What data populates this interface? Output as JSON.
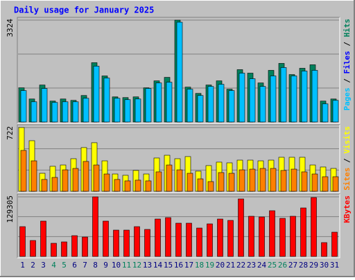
{
  "chart_data": [
    {
      "type": "bar",
      "title": "Daily usage for January 2025",
      "ylim": [
        0,
        3324
      ],
      "yticks": [
        3324
      ],
      "legend_separator": " / ",
      "other_legend_entries": [
        {
          "name": "Files",
          "color": "#0000ff"
        }
      ],
      "series": [
        {
          "name": "Hits",
          "color": "#00805c",
          "values": [
            1116,
            751,
            1207,
            683,
            751,
            706,
            865,
            1935,
            1503,
            820,
            797,
            820,
            1116,
            1343,
            1457,
            3324,
            1138,
            933,
            1207,
            1343,
            1070,
            1708,
            1594,
            1275,
            1685,
            1912,
            1548,
            1753,
            1867,
            683,
            751
          ]
        },
        {
          "name": "Pages",
          "color": "#00c0ff",
          "values": [
            1025,
            660,
            1093,
            638,
            660,
            660,
            774,
            1822,
            1434,
            774,
            729,
            751,
            1093,
            1275,
            1298,
            3256,
            1070,
            865,
            1161,
            1230,
            1025,
            1594,
            1412,
            1161,
            1503,
            1776,
            1503,
            1662,
            1685,
            592,
            706
          ]
        }
      ]
    },
    {
      "type": "bar",
      "ylim": [
        0,
        722
      ],
      "yticks": [
        722
      ],
      "legend_separator": " / ",
      "series": [
        {
          "name": "Visits",
          "color": "#ffff00",
          "values": [
            722,
            573,
            204,
            283,
            298,
            369,
            495,
            550,
            345,
            196,
            181,
            236,
            196,
            377,
            408,
            369,
            393,
            228,
            291,
            330,
            322,
            353,
            353,
            345,
            353,
            385,
            385,
            385,
            298,
            275,
            259
          ]
        },
        {
          "name": "Sites",
          "color": "#ff8000",
          "values": [
            463,
            345,
            134,
            157,
            243,
            259,
            338,
            298,
            196,
            134,
            118,
            126,
            118,
            220,
            298,
            243,
            204,
            141,
            110,
            212,
            204,
            243,
            251,
            259,
            259,
            236,
            251,
            220,
            196,
            165,
            165
          ]
        }
      ]
    },
    {
      "type": "bar",
      "ylim": [
        0,
        129305
      ],
      "yticks": [
        129305
      ],
      "categories": [
        "1",
        "2",
        "3",
        "4",
        "5",
        "6",
        "7",
        "8",
        "9",
        "10",
        "11",
        "12",
        "13",
        "14",
        "15",
        "16",
        "17",
        "18",
        "19",
        "20",
        "21",
        "22",
        "23",
        "24",
        "25",
        "26",
        "27",
        "28",
        "29",
        "30",
        "31"
      ],
      "category_colors": [
        "#000080",
        "#000080",
        "#000080",
        "#00805c",
        "#00805c",
        "#000080",
        "#000080",
        "#000080",
        "#000080",
        "#000080",
        "#00805c",
        "#00805c",
        "#000080",
        "#000080",
        "#000080",
        "#000080",
        "#000080",
        "#00805c",
        "#00805c",
        "#000080",
        "#000080",
        "#000080",
        "#000080",
        "#000080",
        "#00805c",
        "#00805c",
        "#000080",
        "#000080",
        "#000080",
        "#000080",
        "#000080"
      ],
      "series": [
        {
          "name": "KBytes",
          "color": "#ff0000",
          "values": [
            64651,
            34580,
            76679,
            28567,
            31574,
            45105,
            42098,
            129305,
            76679,
            57133,
            57133,
            64651,
            58637,
            81189,
            84196,
            72168,
            72168,
            61644,
            70665,
            81189,
            78182,
            124795,
            87203,
            85700,
            99231,
            82693,
            87203,
            105245,
            127801,
            30070,
            52623
          ]
        }
      ]
    }
  ]
}
